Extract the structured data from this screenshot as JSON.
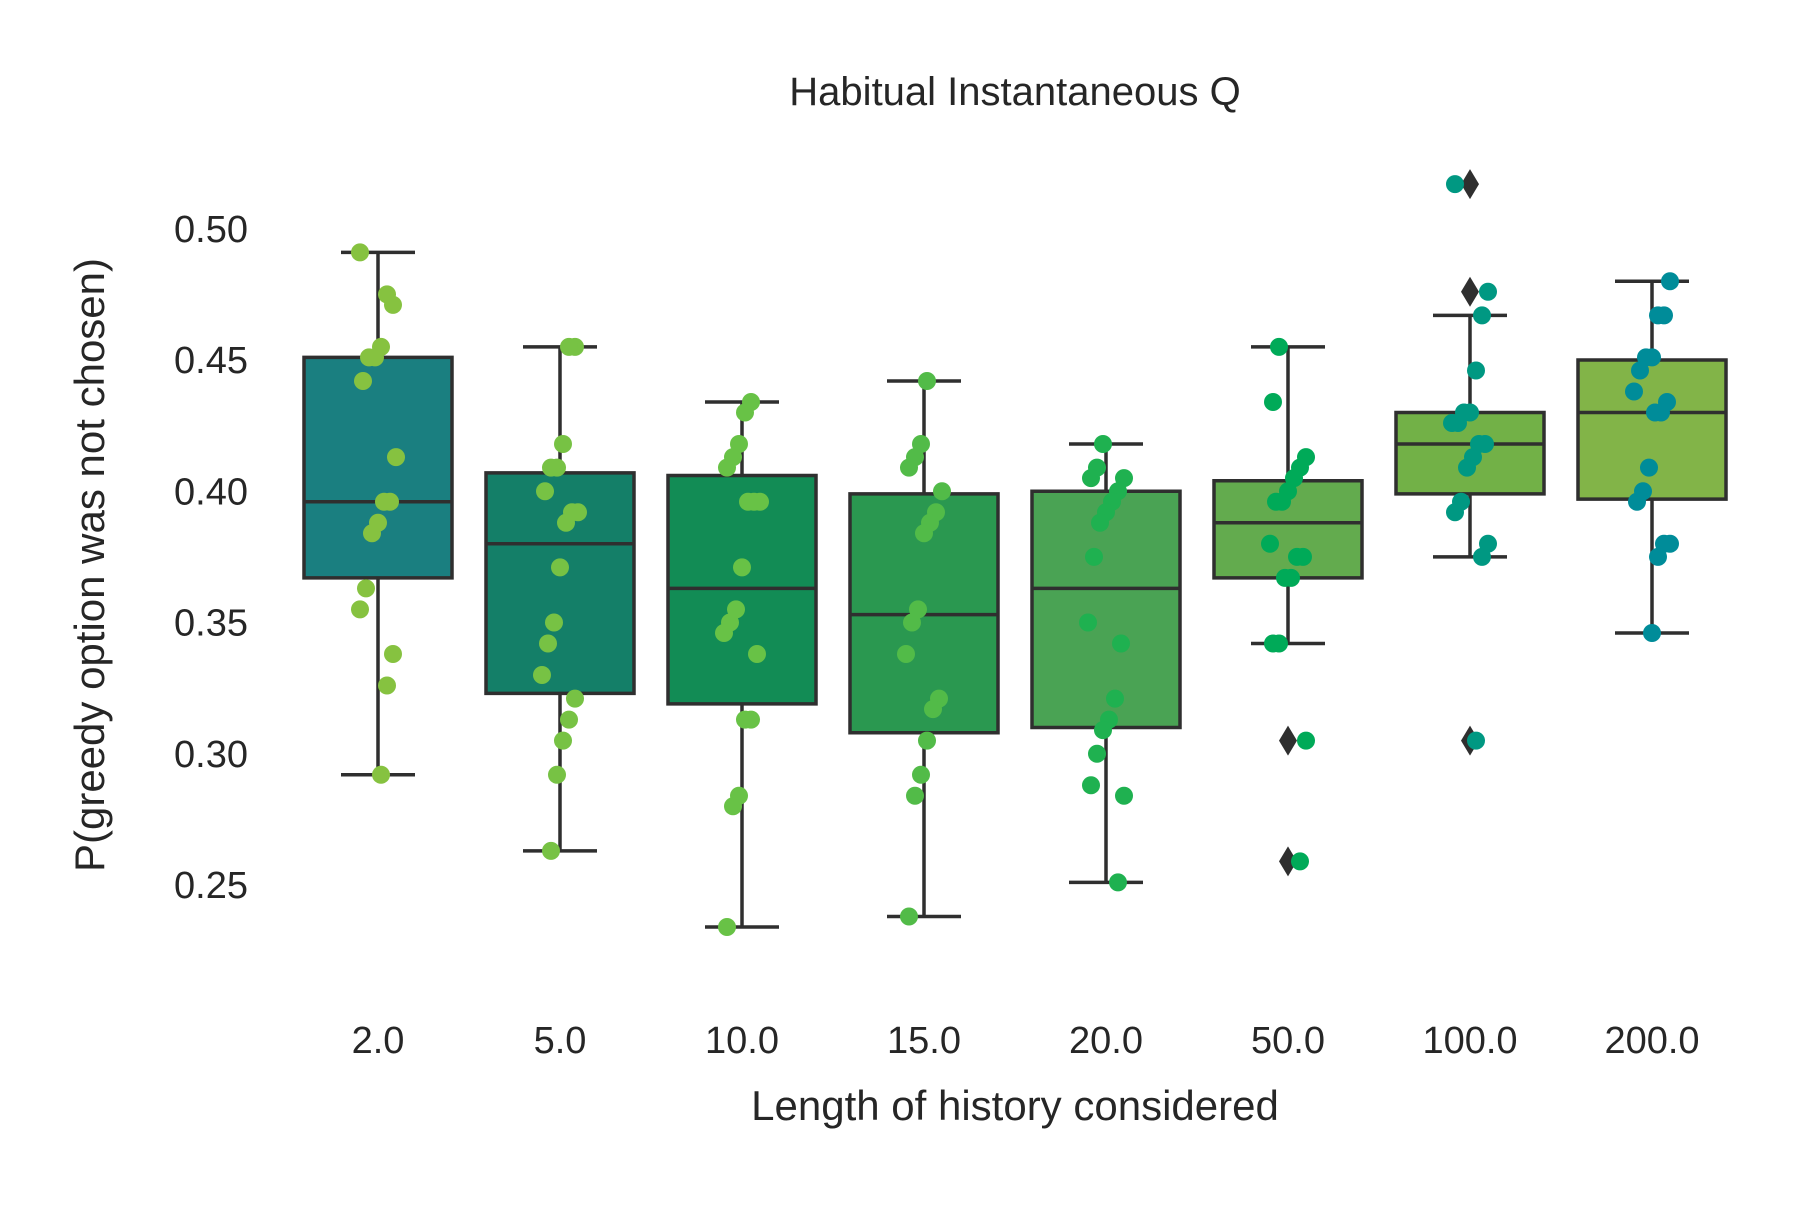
{
  "chart_data": {
    "type": "box",
    "title": "Habitual Instantaneous Q",
    "xlabel": "Length of history considered",
    "ylabel": "P(greedy option was not chosen)",
    "ylim": [
      0.21,
      0.53
    ],
    "yticks": [
      0.25,
      0.3,
      0.35,
      0.4,
      0.45,
      0.5
    ],
    "ytick_labels": [
      "0.25",
      "0.30",
      "0.35",
      "0.40",
      "0.45",
      "0.50"
    ],
    "grid": false,
    "categories": [
      "2.0",
      "5.0",
      "10.0",
      "15.0",
      "20.0",
      "50.0",
      "100.0",
      "200.0"
    ],
    "box_colors": [
      "#1a7f80",
      "#147f68",
      "#128c55",
      "#2a9850",
      "#4aa354",
      "#63ab4e",
      "#72b147",
      "#82b448"
    ],
    "point_colors": [
      "#86c240",
      "#77c244",
      "#68c246",
      "#52bb48",
      "#1fb150",
      "#00aa58",
      "#009882",
      "#008c99"
    ],
    "edge_color": "#2f2f2f",
    "boxes": [
      {
        "q1": 0.367,
        "median": 0.396,
        "q3": 0.451,
        "whislo": 0.292,
        "whishi": 0.491,
        "fliers": []
      },
      {
        "q1": 0.323,
        "median": 0.38,
        "q3": 0.407,
        "whislo": 0.263,
        "whishi": 0.455,
        "fliers": []
      },
      {
        "q1": 0.319,
        "median": 0.363,
        "q3": 0.406,
        "whislo": 0.234,
        "whishi": 0.434,
        "fliers": []
      },
      {
        "q1": 0.308,
        "median": 0.353,
        "q3": 0.399,
        "whislo": 0.238,
        "whishi": 0.442,
        "fliers": []
      },
      {
        "q1": 0.31,
        "median": 0.363,
        "q3": 0.4,
        "whislo": 0.251,
        "whishi": 0.418,
        "fliers": []
      },
      {
        "q1": 0.367,
        "median": 0.388,
        "q3": 0.404,
        "whislo": 0.342,
        "whishi": 0.455,
        "fliers": [
          0.305,
          0.259
        ]
      },
      {
        "q1": 0.399,
        "median": 0.418,
        "q3": 0.43,
        "whislo": 0.375,
        "whishi": 0.467,
        "fliers": [
          0.517,
          0.476,
          0.305
        ]
      },
      {
        "q1": 0.397,
        "median": 0.43,
        "q3": 0.45,
        "whislo": 0.346,
        "whishi": 0.48,
        "fliers": []
      }
    ],
    "points": [
      [
        0.491,
        0.471,
        0.475,
        0.455,
        0.451,
        0.451,
        0.442,
        0.413,
        0.396,
        0.396,
        0.388,
        0.384,
        0.363,
        0.355,
        0.338,
        0.326,
        0.292
      ],
      [
        0.455,
        0.455,
        0.418,
        0.409,
        0.409,
        0.4,
        0.392,
        0.392,
        0.388,
        0.371,
        0.35,
        0.342,
        0.33,
        0.321,
        0.313,
        0.305,
        0.292,
        0.263
      ],
      [
        0.434,
        0.43,
        0.418,
        0.413,
        0.409,
        0.396,
        0.396,
        0.396,
        0.371,
        0.355,
        0.35,
        0.346,
        0.338,
        0.313,
        0.313,
        0.284,
        0.28,
        0.234
      ],
      [
        0.442,
        0.418,
        0.413,
        0.409,
        0.4,
        0.392,
        0.388,
        0.384,
        0.355,
        0.35,
        0.338,
        0.321,
        0.317,
        0.305,
        0.292,
        0.284,
        0.238
      ],
      [
        0.418,
        0.409,
        0.405,
        0.405,
        0.4,
        0.396,
        0.392,
        0.388,
        0.375,
        0.35,
        0.342,
        0.321,
        0.313,
        0.309,
        0.3,
        0.288,
        0.284,
        0.251
      ],
      [
        0.455,
        0.434,
        0.413,
        0.409,
        0.405,
        0.4,
        0.396,
        0.396,
        0.38,
        0.375,
        0.375,
        0.367,
        0.367,
        0.342,
        0.342,
        0.305,
        0.259
      ],
      [
        0.517,
        0.476,
        0.467,
        0.446,
        0.43,
        0.43,
        0.426,
        0.426,
        0.418,
        0.418,
        0.413,
        0.409,
        0.396,
        0.392,
        0.38,
        0.375,
        0.305
      ],
      [
        0.48,
        0.467,
        0.467,
        0.451,
        0.451,
        0.446,
        0.438,
        0.434,
        0.43,
        0.43,
        0.409,
        0.4,
        0.396,
        0.38,
        0.38,
        0.375,
        0.346
      ]
    ]
  }
}
